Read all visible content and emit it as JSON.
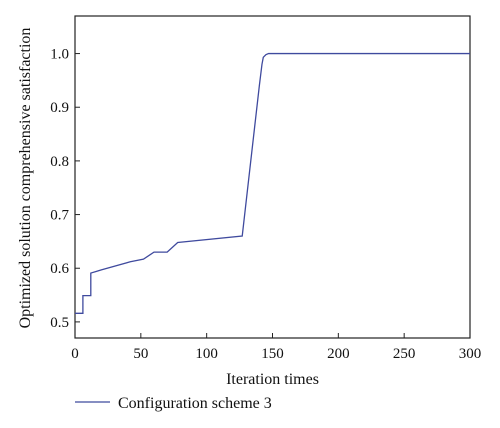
{
  "chart_data": {
    "type": "line",
    "xlabel": "Iteration times",
    "ylabel": "Optimized solution comprehensive satisfaction",
    "xlim": [
      0,
      300
    ],
    "ylim": [
      0.47,
      1.07
    ],
    "xticks": [
      0,
      50,
      100,
      150,
      200,
      250,
      300
    ],
    "yticks": [
      0.5,
      0.6,
      0.7,
      0.8,
      0.9,
      1.0
    ],
    "xtick_labels": [
      "0",
      "50",
      "100",
      "150",
      "200",
      "250",
      "300"
    ],
    "ytick_labels": [
      "0.5",
      "0.6",
      "0.7",
      "0.8",
      "0.9",
      "1.0"
    ],
    "grid": false,
    "legend_position": "bottom-left below plot",
    "series": [
      {
        "name": "Configuration scheme 3",
        "color": "#3f4a9e",
        "step": true,
        "x": [
          0,
          6,
          12,
          16,
          20,
          42,
          52,
          60,
          70,
          78,
          127,
          140,
          142,
          143,
          145,
          147,
          150,
          300
        ],
        "y": [
          0.516,
          0.549,
          0.591,
          0.594,
          0.597,
          0.612,
          0.617,
          0.63,
          0.63,
          0.648,
          0.66,
          0.94,
          0.98,
          0.993,
          0.998,
          1.0,
          1.0,
          1.0
        ]
      }
    ]
  }
}
